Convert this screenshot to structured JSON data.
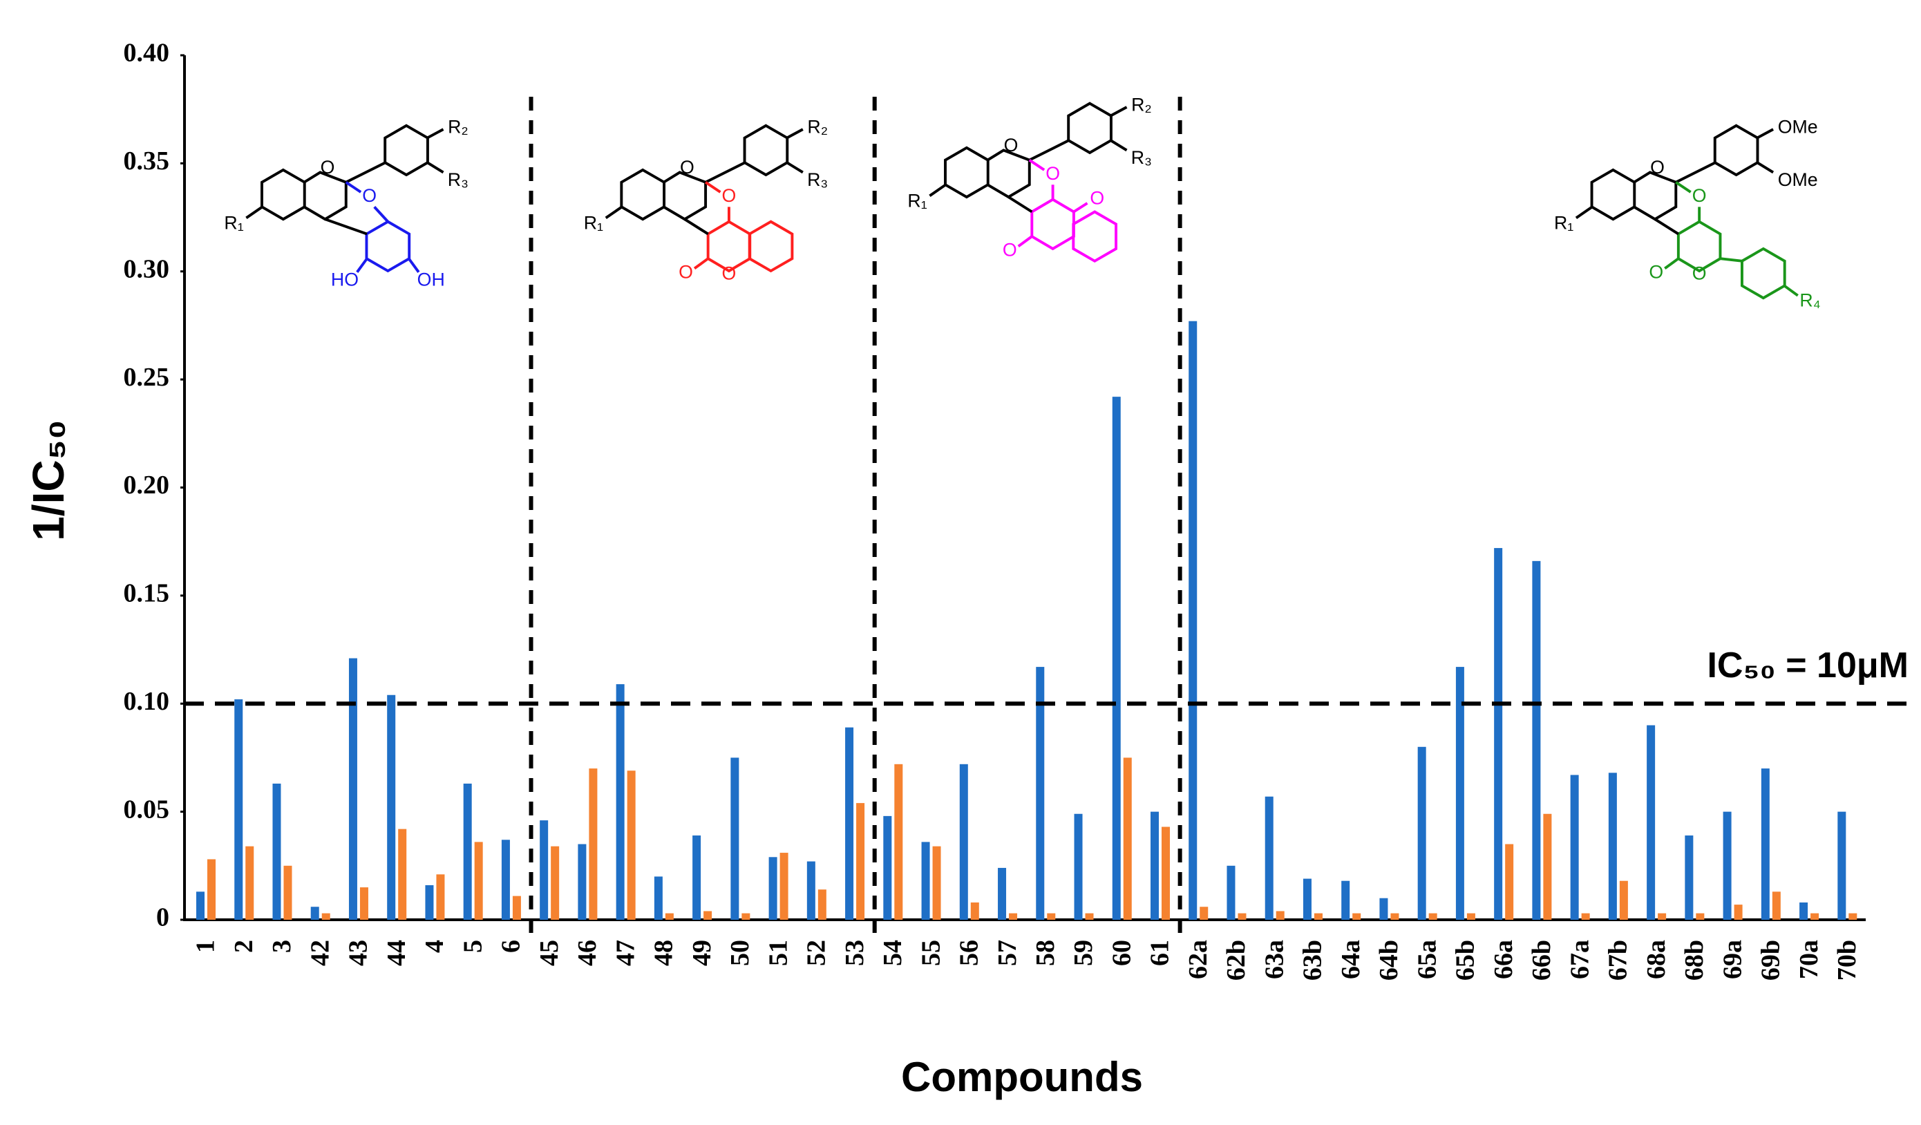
{
  "chart_data": {
    "type": "bar",
    "x_label": "Compounds",
    "y_label": "1/IC₅₀",
    "categories": [
      "1",
      "2",
      "3",
      "42",
      "43",
      "44",
      "4",
      "5",
      "6",
      "45",
      "46",
      "47",
      "48",
      "49",
      "50",
      "51",
      "52",
      "53",
      "54",
      "55",
      "56",
      "57",
      "58",
      "59",
      "60",
      "61",
      "62a",
      "62b",
      "63a",
      "63b",
      "64a",
      "64b",
      "65a",
      "65b",
      "66a",
      "66b",
      "67a",
      "67b",
      "68a",
      "68b",
      "69a",
      "69b",
      "70a",
      "70b"
    ],
    "series": [
      {
        "color": "#1f6fc6",
        "values": [
          0.013,
          0.102,
          0.063,
          0.006,
          0.121,
          0.104,
          0.016,
          0.063,
          0.037,
          0.046,
          0.035,
          0.109,
          0.02,
          0.039,
          0.075,
          0.029,
          0.027,
          0.089,
          0.048,
          0.036,
          0.072,
          0.024,
          0.117,
          0.049,
          0.242,
          0.05,
          0.277,
          0.025,
          0.057,
          0.019,
          0.018,
          0.01,
          0.08,
          0.117,
          0.172,
          0.166,
          0.067,
          0.068,
          0.09,
          0.039,
          0.05,
          0.07,
          0.008,
          0.05
        ]
      },
      {
        "color": "#f58230",
        "values": [
          0.028,
          0.034,
          0.025,
          0.003,
          0.015,
          0.042,
          0.021,
          0.036,
          0.011,
          0.034,
          0.07,
          0.069,
          0.003,
          0.004,
          0.003,
          0.031,
          0.014,
          0.054,
          0.072,
          0.034,
          0.008,
          0.003,
          0.003,
          0.003,
          0.075,
          0.043,
          0.006,
          0.003,
          0.004,
          0.003,
          0.003,
          0.003,
          0.003,
          0.003,
          0.035,
          0.049,
          0.003,
          0.018,
          0.003,
          0.003,
          0.007,
          0.013,
          0.003,
          0.003
        ]
      }
    ],
    "ylim": [
      0,
      0.4
    ],
    "yticks": [
      0,
      0.05,
      {
        "value": 0.1,
        "label": "0.10"
      },
      0.15,
      {
        "value": 0.2,
        "label": "0.20"
      },
      0.25,
      {
        "value": 0.3,
        "label": "0.30"
      },
      0.35,
      {
        "value": 0.4,
        "label": "0.40"
      }
    ],
    "reference_line": {
      "value": 0.1,
      "label": "IC₅₀ = 10μM"
    },
    "structures": [
      {
        "color": "#1a1aee",
        "labels": [
          "O",
          "R₁",
          "R₂",
          "R₃",
          "O",
          "HO",
          "OH"
        ]
      },
      {
        "color": "#ff1f1f",
        "labels": [
          "O",
          "R₁",
          "R₂",
          "R₃",
          "O",
          "O",
          "O"
        ]
      },
      {
        "color": "#ff00ff",
        "labels": [
          "O",
          "R₁",
          "R₂",
          "R₃",
          "O",
          "O",
          "O"
        ]
      },
      {
        "color": "#1a961a",
        "labels": [
          "O",
          "R₁",
          "OMe",
          "OMe",
          "O",
          "O",
          "O",
          "R₄"
        ]
      }
    ]
  }
}
